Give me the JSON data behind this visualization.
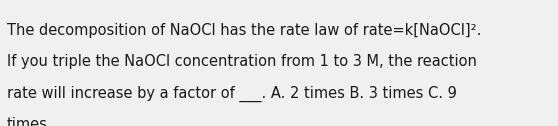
{
  "background_color": "#f0f0f0",
  "text_color": "#1a1a1a",
  "line1": "The decomposition of NaOCl has the rate law of rate=k[NaOCl]².",
  "line2": "If you triple the NaOCl concentration from 1 to 3 M, the reaction",
  "line3": "rate will increase by a factor of ___. A. 2 times B. 3 times C. 9",
  "line4": "times",
  "font_size": 10.5,
  "fig_width": 5.58,
  "fig_height": 1.26,
  "dpi": 100
}
